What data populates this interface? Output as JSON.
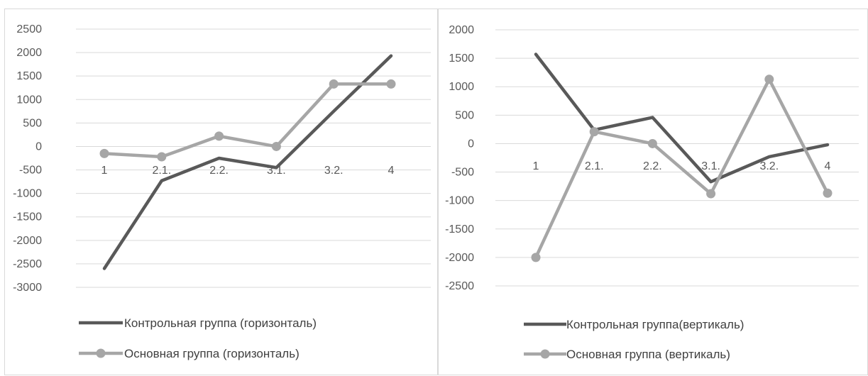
{
  "chart_data": [
    {
      "type": "line",
      "categories": [
        "1",
        "2.1.",
        "2.2.",
        "3.1.",
        "3.2.",
        "4"
      ],
      "ylim": [
        -3000,
        2500
      ],
      "ystep": 500,
      "yticks": [
        "2500",
        "2000",
        "1500",
        "1000",
        "500",
        "0",
        "-500",
        "-1000",
        "-1500",
        "-2000",
        "-2500",
        "-3000"
      ],
      "grid": true,
      "legend_position": "bottom",
      "series": [
        {
          "name": "Контрольная группа (горизонталь)",
          "values": [
            -2600,
            -730,
            -250,
            -450,
            750,
            1930
          ],
          "color": "#595959",
          "markers": false
        },
        {
          "name": "Основная группа (горизонталь)",
          "values": [
            -150,
            -220,
            220,
            0,
            1330,
            1330
          ],
          "color": "#a6a6a6",
          "markers": true
        }
      ]
    },
    {
      "type": "line",
      "categories": [
        "1",
        "2.1.",
        "2.2.",
        "3.1.",
        "3.2.",
        "4"
      ],
      "ylim": [
        -2500,
        2000
      ],
      "ystep": 500,
      "yticks": [
        "2000",
        "1500",
        "1000",
        "500",
        "0",
        "-500",
        "-1000",
        "-1500",
        "-2000",
        "-2500"
      ],
      "grid": true,
      "legend_position": "bottom",
      "series": [
        {
          "name": "Контрольная группа(вертикаль)",
          "values": [
            1570,
            240,
            460,
            -670,
            -230,
            -20
          ],
          "color": "#595959",
          "markers": false
        },
        {
          "name": "Основная группа (вертикаль)",
          "values": [
            -2000,
            210,
            0,
            -880,
            1130,
            -870
          ],
          "color": "#a6a6a6",
          "markers": true
        }
      ]
    }
  ]
}
